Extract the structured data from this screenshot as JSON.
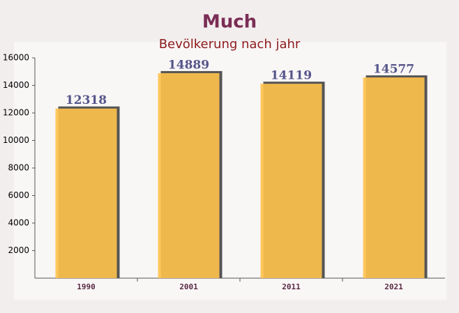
{
  "chart_data": {
    "type": "bar",
    "title": "Much",
    "subtitle": "Bevölkerung nach jahr",
    "categories": [
      "1990",
      "2001",
      "2011",
      "2021"
    ],
    "values": [
      12318,
      14889,
      14119,
      14577
    ],
    "color": "#ffc34d",
    "ylim": [
      0,
      16000
    ],
    "yticks": [
      2000,
      4000,
      6000,
      8000,
      10000,
      12000,
      14000,
      16000
    ]
  }
}
